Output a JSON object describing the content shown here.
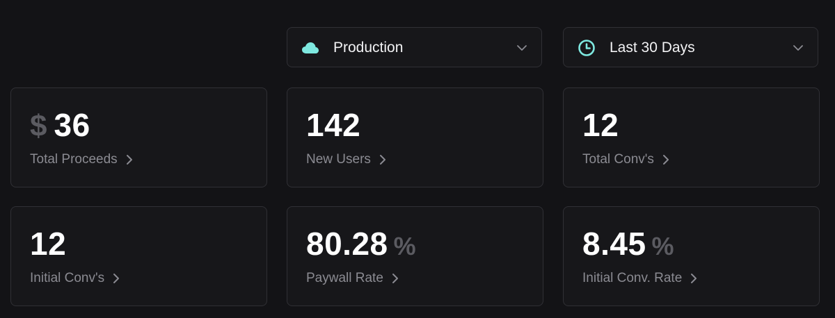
{
  "filters": {
    "environment": {
      "label": "Production",
      "icon": "cloud-icon",
      "icon_color": "#7ee8e0"
    },
    "date_range": {
      "label": "Last 30 Days",
      "icon": "clock-icon",
      "icon_color": "#7ee8e0"
    }
  },
  "metrics": [
    {
      "id": "total-proceeds",
      "prefix": "$",
      "value": "36",
      "suffix": "",
      "label": "Total Proceeds"
    },
    {
      "id": "new-users",
      "prefix": "",
      "value": "142",
      "suffix": "",
      "label": "New Users"
    },
    {
      "id": "total-convs",
      "prefix": "",
      "value": "12",
      "suffix": "",
      "label": "Total Conv's"
    },
    {
      "id": "initial-convs",
      "prefix": "",
      "value": "12",
      "suffix": "",
      "label": "Initial Conv's"
    },
    {
      "id": "paywall-rate",
      "prefix": "",
      "value": "80.28",
      "suffix": "%",
      "label": "Paywall Rate"
    },
    {
      "id": "initial-conv-rate",
      "prefix": "",
      "value": "8.45",
      "suffix": "%",
      "label": "Initial Conv. Rate"
    }
  ],
  "colors": {
    "background": "#131316",
    "card": "#17171a",
    "border": "#303035",
    "value": "#ffffff",
    "muted": "#5b5b61",
    "label": "#8b8b92",
    "accent": "#7ee8e0"
  }
}
